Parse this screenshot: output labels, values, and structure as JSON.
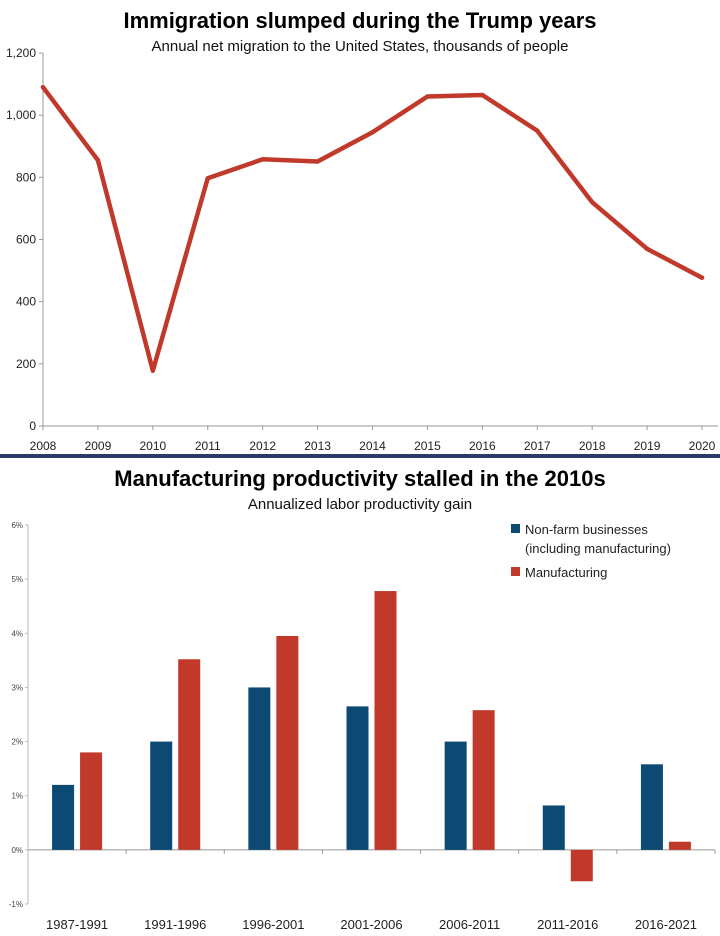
{
  "chart_data": [
    {
      "type": "line",
      "title": "Immigration slumped during the Trump years",
      "subtitle": "Annual net migration to the United States, thousands of people",
      "x": [
        "2008",
        "2009",
        "2010",
        "2011",
        "2012",
        "2013",
        "2014",
        "2015",
        "2016",
        "2017",
        "2018",
        "2019",
        "2020"
      ],
      "series": [
        {
          "values": [
            1090,
            855,
            178,
            797,
            858,
            851,
            945,
            1060,
            1065,
            950,
            720,
            570,
            477
          ]
        }
      ],
      "ylim": [
        0,
        1200
      ],
      "yticks": [
        "0",
        "200",
        "400",
        "600",
        "800",
        "1,000",
        "1,200"
      ],
      "ytick_values": [
        0,
        200,
        400,
        600,
        800,
        1000,
        1200
      ],
      "grid": false,
      "colors": {
        "line": "#c0392b",
        "axis": "#999999"
      }
    },
    {
      "type": "bar",
      "title": "Manufacturing productivity stalled in the 2010s",
      "subtitle": "Annualized labor productivity gain",
      "categories": [
        "1987-1991",
        "1991-1996",
        "1996-2001",
        "2001-2006",
        "2006-2011",
        "2011-2016",
        "2016-2021"
      ],
      "series": [
        {
          "name": "Non-farm businesses (including manufacturing)",
          "legend_lines": [
            "Non-farm businesses",
            "(including manufacturing)"
          ],
          "color": "#0d4a73",
          "values": [
            1.2,
            2.0,
            3.0,
            2.65,
            2.0,
            0.82,
            1.58
          ]
        },
        {
          "name": "Manufacturing",
          "legend_lines": [
            "Manufacturing"
          ],
          "color": "#c0392b",
          "values": [
            1.8,
            3.52,
            3.95,
            4.78,
            2.58,
            -0.58,
            0.15
          ]
        }
      ],
      "ylim": [
        -1,
        6
      ],
      "yticks": [
        "-1%",
        "0%",
        "1%",
        "2%",
        "3%",
        "4%",
        "5%",
        "6%"
      ],
      "ytick_values": [
        -1,
        0,
        1,
        2,
        3,
        4,
        5,
        6
      ],
      "legend_position": "top-right",
      "grid": false
    }
  ]
}
